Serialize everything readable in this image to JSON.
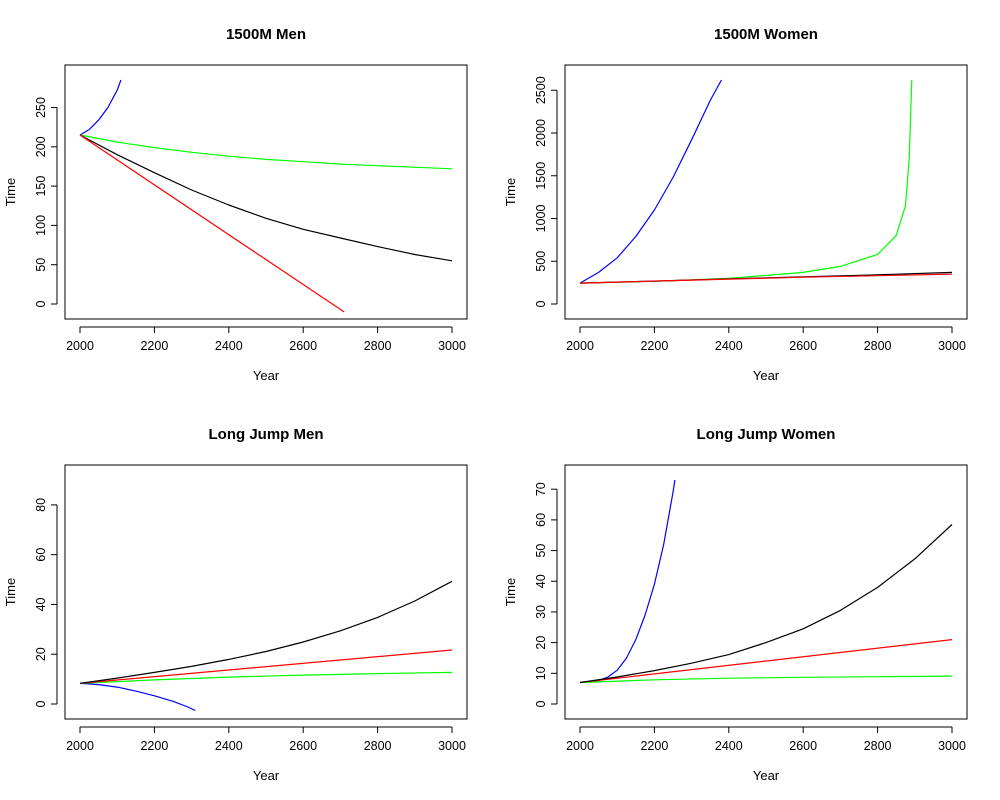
{
  "chart_data": [
    {
      "type": "line",
      "title": "1500M Men",
      "xlabel": "Year",
      "ylabel": "Time",
      "xlim": [
        2000,
        3000
      ],
      "ylim": [
        0,
        285
      ],
      "xticks": [
        2000,
        2200,
        2400,
        2600,
        2800,
        3000
      ],
      "yticks": [
        0,
        50,
        100,
        150,
        200,
        250
      ],
      "series": [
        {
          "color": "#0000ff",
          "x": [
            2000,
            2025,
            2050,
            2075,
            2100,
            2110
          ],
          "y": [
            215,
            222,
            234,
            250,
            272,
            285
          ]
        },
        {
          "color": "#00ff00",
          "x": [
            2000,
            2100,
            2200,
            2300,
            2400,
            2500,
            2600,
            2700,
            2800,
            2900,
            3000
          ],
          "y": [
            215,
            206,
            199,
            193,
            188,
            184,
            181,
            178,
            176,
            174,
            172
          ]
        },
        {
          "color": "#000000",
          "x": [
            2000,
            2100,
            2200,
            2300,
            2400,
            2500,
            2600,
            2700,
            2800,
            2900,
            3000
          ],
          "y": [
            215,
            190,
            167,
            145,
            126,
            109,
            95,
            84,
            73,
            63,
            55
          ]
        },
        {
          "color": "#ff0000",
          "x": [
            2000,
            2710
          ],
          "y": [
            215,
            -10
          ]
        }
      ]
    },
    {
      "type": "line",
      "title": "1500M Women",
      "xlabel": "Year",
      "ylabel": "Time",
      "xlim": [
        2000,
        3000
      ],
      "ylim": [
        0,
        2620
      ],
      "xticks": [
        2000,
        2200,
        2400,
        2600,
        2800,
        3000
      ],
      "yticks": [
        0,
        500,
        1000,
        1500,
        2000,
        2500
      ],
      "series": [
        {
          "color": "#0000ff",
          "x": [
            2000,
            2050,
            2100,
            2150,
            2200,
            2250,
            2300,
            2350,
            2380
          ],
          "y": [
            245,
            370,
            540,
            790,
            1100,
            1480,
            1920,
            2380,
            2620
          ]
        },
        {
          "color": "#00ff00",
          "x": [
            2000,
            2200,
            2400,
            2600,
            2700,
            2800,
            2850,
            2875,
            2885,
            2892
          ],
          "y": [
            245,
            265,
            300,
            370,
            440,
            580,
            800,
            1150,
            1700,
            2620
          ]
        },
        {
          "color": "#000000",
          "x": [
            2000,
            2200,
            2400,
            2600,
            2800,
            3000
          ],
          "y": [
            245,
            268,
            293,
            318,
            342,
            370
          ]
        },
        {
          "color": "#ff0000",
          "x": [
            2000,
            2200,
            2400,
            2600,
            2800,
            3000
          ],
          "y": [
            245,
            268,
            291,
            313,
            331,
            350
          ]
        }
      ]
    },
    {
      "type": "line",
      "title": "Long Jump Men",
      "xlabel": "Year",
      "ylabel": "Time",
      "xlim": [
        2000,
        3000
      ],
      "ylim": [
        0,
        90
      ],
      "xticks": [
        2000,
        2200,
        2400,
        2600,
        2800,
        3000
      ],
      "yticks": [
        0,
        20,
        40,
        60,
        80
      ],
      "series": [
        {
          "color": "#0000ff",
          "x": [
            2000,
            2050,
            2100,
            2150,
            2200,
            2250,
            2290,
            2310
          ],
          "y": [
            8.3,
            7.8,
            6.8,
            5.2,
            3.3,
            1.1,
            -1.2,
            -2.6
          ]
        },
        {
          "color": "#00ff00",
          "x": [
            2000,
            2200,
            2400,
            2600,
            2800,
            3000
          ],
          "y": [
            8.3,
            9.7,
            10.8,
            11.6,
            12.2,
            12.7
          ]
        },
        {
          "color": "#ff0000",
          "x": [
            2000,
            3000
          ],
          "y": [
            8.3,
            21.7
          ]
        },
        {
          "color": "#000000",
          "x": [
            2000,
            2100,
            2200,
            2300,
            2400,
            2500,
            2600,
            2700,
            2800,
            2900,
            3000
          ],
          "y": [
            8.3,
            10.4,
            12.7,
            15.1,
            17.9,
            21.1,
            24.9,
            29.4,
            34.8,
            41.4,
            49.3
          ]
        }
      ]
    },
    {
      "type": "line",
      "title": "Long Jump Women",
      "xlabel": "Year",
      "ylabel": "Time",
      "xlim": [
        2000,
        3000
      ],
      "ylim": [
        0,
        73
      ],
      "xticks": [
        2000,
        2200,
        2400,
        2600,
        2800,
        3000
      ],
      "yticks": [
        0,
        10,
        20,
        30,
        40,
        50,
        60,
        70
      ],
      "series": [
        {
          "color": "#0000ff",
          "x": [
            2000,
            2050,
            2075,
            2100,
            2125,
            2150,
            2175,
            2200,
            2225,
            2250,
            2255
          ],
          "y": [
            7,
            7.6,
            8.8,
            11,
            15,
            21,
            29,
            39,
            52,
            69,
            73
          ]
        },
        {
          "color": "#00ff00",
          "x": [
            2000,
            2200,
            2400,
            2600,
            2800,
            3000
          ],
          "y": [
            7,
            7.9,
            8.4,
            8.7,
            8.9,
            9.1
          ]
        },
        {
          "color": "#ff0000",
          "x": [
            2000,
            3000
          ],
          "y": [
            7,
            21
          ]
        },
        {
          "color": "#000000",
          "x": [
            2000,
            2100,
            2200,
            2300,
            2400,
            2500,
            2600,
            2700,
            2800,
            2900,
            3000
          ],
          "y": [
            7,
            8.8,
            10.9,
            13.3,
            16.1,
            20,
            24.5,
            30.5,
            38,
            47.3,
            58.5
          ]
        }
      ]
    }
  ]
}
